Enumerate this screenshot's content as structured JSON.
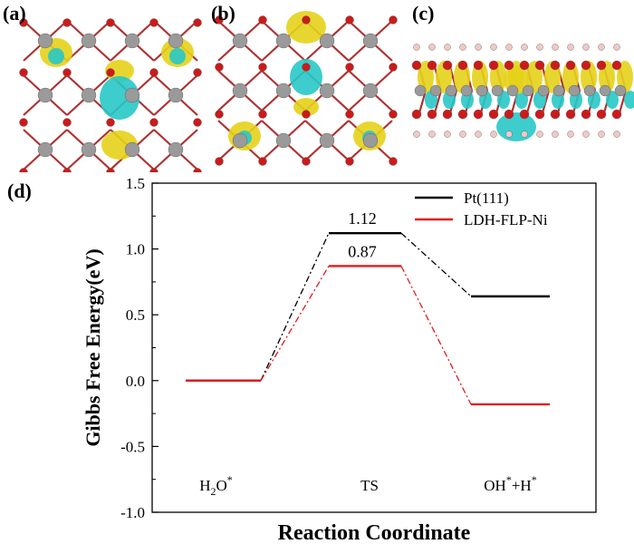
{
  "panels": {
    "a": {
      "label": "(a)"
    },
    "b": {
      "label": "(b)"
    },
    "c": {
      "label": "(c)"
    },
    "d": {
      "label": "(d)"
    }
  },
  "colors": {
    "isosurface_yellow": "#e6d21a",
    "isosurface_cyan": "#28c8c8",
    "atom_red": "#cc1a1a",
    "atom_gray": "#9a9a9a",
    "atom_pink": "#f0c8c8",
    "series_pt": "#000000",
    "series_ldh": "#e41a1a"
  },
  "chart_data": {
    "type": "line",
    "title": "",
    "xlabel": "Reaction Coordinate",
    "ylabel": "Gibbs Free Energy(eV)",
    "ylim": [
      -1.0,
      1.5
    ],
    "yticks": [
      "-1.0",
      "-0.5",
      "0.0",
      "0.5",
      "1.0",
      "1.5"
    ],
    "categories": [
      "H2O*",
      "TS",
      "OH*+H*"
    ],
    "category_labels": [
      {
        "base": "H",
        "sub": "2",
        "mid": "O",
        "sup": "*",
        "rest": ""
      },
      {
        "base": "TS",
        "sub": "",
        "mid": "",
        "sup": "",
        "rest": ""
      },
      {
        "base": "OH",
        "sub": "",
        "mid": "",
        "sup": "*",
        "rest": "+H*"
      }
    ],
    "legend_position": "top-right",
    "series": [
      {
        "name": "Pt(111)",
        "color": "#000000",
        "values": [
          0.0,
          1.12,
          0.64
        ]
      },
      {
        "name": "LDH-FLP-Ni",
        "color": "#e41a1a",
        "values": [
          0.0,
          0.87,
          -0.18
        ]
      }
    ],
    "annotations": [
      "1.12",
      "0.87"
    ]
  }
}
